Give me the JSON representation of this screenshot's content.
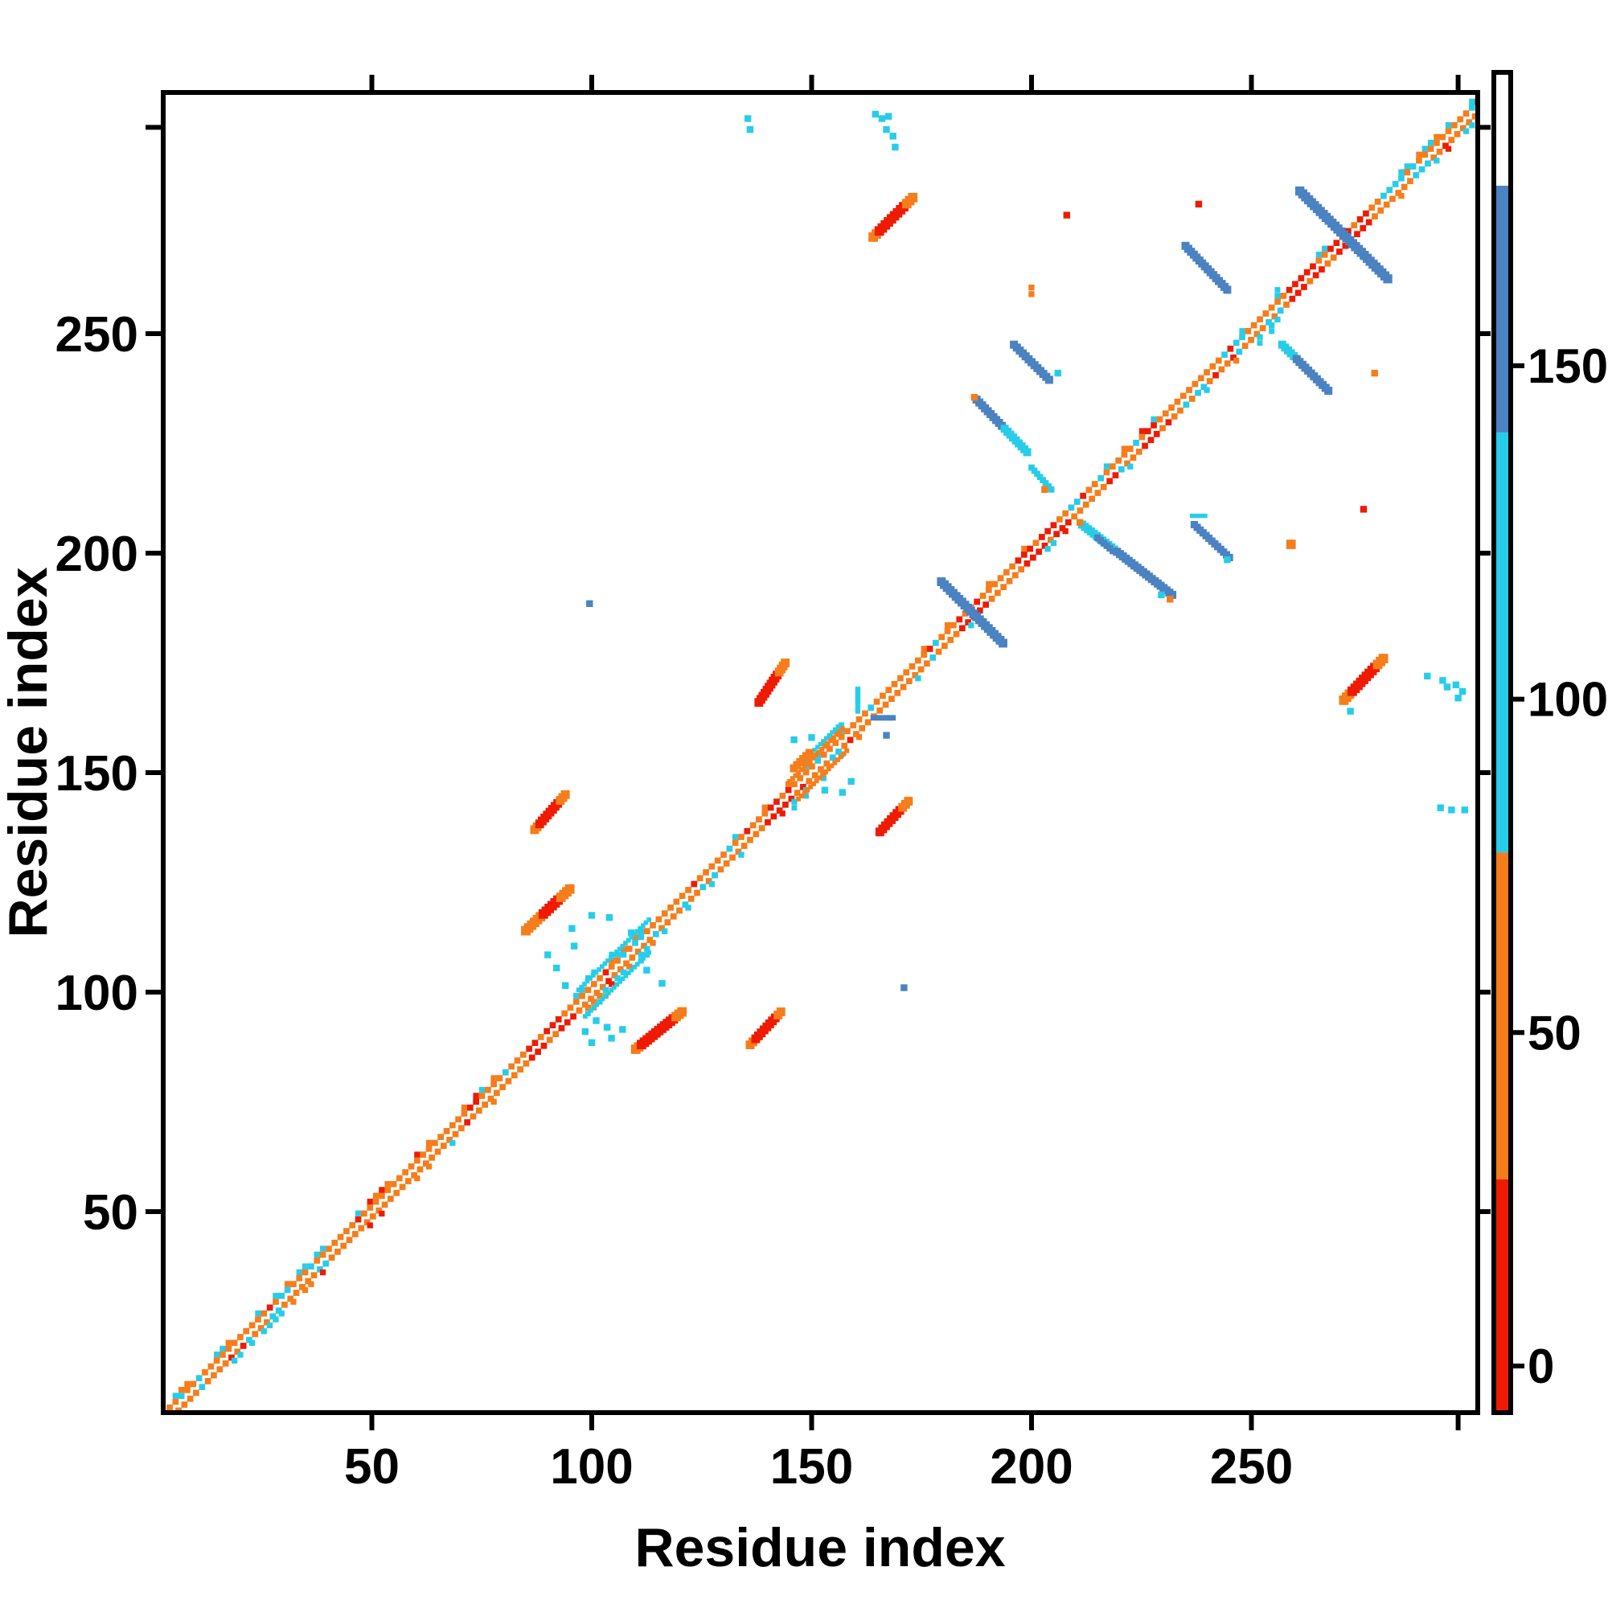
{
  "figure": {
    "kind": "protein residue contact map",
    "background": "#ffffff"
  },
  "chart_data": {
    "type": "heatmap",
    "title": "",
    "xlabel": "Residue index",
    "ylabel": "Residue index",
    "x_ticks": [
      50,
      100,
      150,
      200,
      250
    ],
    "y_ticks": [
      50,
      100,
      150,
      200,
      250
    ],
    "edge_tick": 297,
    "x_range": [
      0,
      305
    ],
    "y_range": [
      0,
      305
    ],
    "grid": false,
    "colors": {
      "red": "#ee1b02",
      "orange": "#f57d1b",
      "cyan": "#27cde8",
      "blue": "#4a82c2",
      "white": "#ffffff",
      "axis": "#000000"
    },
    "colorbar": {
      "ticks": [
        0,
        50,
        100,
        150
      ],
      "value_range": [
        -7,
        194
      ],
      "segments": [
        {
          "from": -7,
          "to": 28,
          "color_key": "red"
        },
        {
          "from": 28,
          "to": 77,
          "color_key": "orange"
        },
        {
          "from": 77,
          "to": 140,
          "color_key": "cyan"
        },
        {
          "from": 140,
          "to": 177,
          "color_key": "blue"
        },
        {
          "from": 177,
          "to": 194,
          "color_key": "white"
        }
      ]
    },
    "diagonal_band": {
      "range": [
        0,
        303
      ],
      "red_stretches": [
        [
          85,
          93
        ],
        [
          138,
          145
        ],
        [
          183,
          191
        ],
        [
          196,
          203
        ],
        [
          204,
          208
        ],
        [
          224,
          228
        ],
        [
          258,
          266
        ],
        [
          267,
          277
        ]
      ],
      "cyan_fleck_zones": [
        [
          20,
          40
        ],
        [
          95,
          115
        ],
        [
          145,
          160
        ],
        [
          168,
          180
        ],
        [
          232,
          258
        ],
        [
          277,
          302
        ]
      ],
      "offset2_zones": [
        [
          20,
          40
        ],
        [
          48,
          53
        ],
        [
          95,
          115
        ],
        [
          145,
          162
        ],
        [
          248,
          258
        ],
        [
          283,
          302
        ]
      ],
      "offset3_zones": [
        [
          97,
          113
        ],
        [
          146,
          160
        ],
        [
          250,
          257
        ]
      ],
      "orange_lens": [
        48,
        53
      ]
    },
    "features": [
      {
        "name": "anti-blue-seg",
        "from": [
          196,
          247.5
        ],
        "to": [
          204,
          239.5
        ],
        "w": 2.2,
        "parts": [
          {
            "t": 1,
            "c": "blue"
          }
        ]
      },
      {
        "name": "anti-blue-cyan-seg",
        "from": [
          187.5,
          235
        ],
        "to": [
          199,
          223
        ],
        "w": 2.2,
        "parts": [
          {
            "t": 0.55,
            "c": "blue"
          },
          {
            "t": 1,
            "c": "cyan"
          }
        ]
      },
      {
        "name": "cyan-steps",
        "from": [
          200,
          219.5
        ],
        "to": [
          204.5,
          214.5
        ],
        "w": 1.7,
        "parts": [
          {
            "t": 1,
            "c": "cyan"
          }
        ]
      },
      {
        "name": "anti-blue-seg2",
        "from": [
          235,
          270
        ],
        "to": [
          244.5,
          260
        ],
        "w": 2.2,
        "parts": [
          {
            "t": 1,
            "c": "blue"
          }
        ]
      },
      {
        "name": "x-arm-187",
        "from": [
          179.5,
          193.5
        ],
        "to": [
          193.5,
          179.5
        ],
        "w": 2.4,
        "parts": [
          {
            "t": 1,
            "c": "blue"
          }
        ]
      },
      {
        "name": "x-arm-271",
        "from": [
          261,
          282.5
        ],
        "to": [
          281,
          262.5
        ],
        "w": 2.5,
        "parts": [
          {
            "t": 1,
            "c": "blue"
          }
        ]
      },
      {
        "name": "anti-cyan-blue-seg",
        "from": [
          257,
          247.5
        ],
        "to": [
          267.5,
          237
        ],
        "w": 2.2,
        "parts": [
          {
            "t": 0.3,
            "c": "cyan"
          },
          {
            "t": 1,
            "c": "blue"
          }
        ]
      },
      {
        "name": "long-anti-seg",
        "from": [
          211.5,
          206.5
        ],
        "to": [
          232,
          190.5
        ],
        "w": 2.2,
        "parts": [
          {
            "t": 0.38,
            "c": "cyan"
          },
          {
            "t": 1,
            "c": "blue"
          }
        ]
      },
      {
        "name": "long-anti-thick",
        "from": [
          215,
          203.5
        ],
        "to": [
          218.5,
          200.5
        ],
        "w": 1.8,
        "parts": [
          {
            "t": 1,
            "c": "blue"
          }
        ]
      },
      {
        "name": "anti-blue-seg3",
        "from": [
          237,
          206.5
        ],
        "to": [
          245,
          199
        ],
        "w": 2.0,
        "parts": [
          {
            "t": 1,
            "c": "blue"
          }
        ]
      },
      {
        "name": "cyan-dash",
        "from": [
          236.5,
          208.5
        ],
        "to": [
          239.5,
          208.5
        ],
        "w": 1.2,
        "parts": [
          {
            "t": 1,
            "c": "cyan"
          }
        ]
      },
      {
        "name": "red-blob-ul-1",
        "from": [
          164,
          272
        ],
        "to": [
          173,
          281
        ],
        "w": 2.6,
        "parts": [
          {
            "t": 0.15,
            "c": "orange"
          },
          {
            "t": 0.8,
            "c": "red"
          },
          {
            "t": 1,
            "c": "orange"
          }
        ]
      },
      {
        "name": "red-blob-ul-2",
        "from": [
          87,
          137
        ],
        "to": [
          94,
          145
        ],
        "w": 2.4,
        "parts": [
          {
            "t": 0.15,
            "c": "orange"
          },
          {
            "t": 0.8,
            "c": "red"
          },
          {
            "t": 1,
            "c": "orange"
          }
        ]
      },
      {
        "name": "orange-blob-ul",
        "from": [
          85,
          114
        ],
        "to": [
          95,
          123.5
        ],
        "w": 2.6,
        "parts": [
          {
            "t": 0.35,
            "c": "orange"
          },
          {
            "t": 0.75,
            "c": "red"
          },
          {
            "t": 1,
            "c": "orange"
          }
        ]
      },
      {
        "name": "red-blob-ul-3",
        "from": [
          138,
          166
        ],
        "to": [
          144,
          175
        ],
        "w": 2.4,
        "parts": [
          {
            "t": 0.7,
            "c": "red"
          },
          {
            "t": 1,
            "c": "orange"
          }
        ]
      },
      {
        "name": "red-blob-lr-1",
        "from": [
          110,
          87
        ],
        "to": [
          120.5,
          95.5
        ],
        "w": 2.6,
        "parts": [
          {
            "t": 0.12,
            "c": "orange"
          },
          {
            "t": 0.85,
            "c": "red"
          },
          {
            "t": 1,
            "c": "orange"
          }
        ]
      },
      {
        "name": "red-blob-lr-2",
        "from": [
          136,
          88
        ],
        "to": [
          143,
          95.5
        ],
        "w": 2.4,
        "parts": [
          {
            "t": 0.15,
            "c": "orange"
          },
          {
            "t": 0.85,
            "c": "red"
          },
          {
            "t": 1,
            "c": "orange"
          }
        ]
      },
      {
        "name": "red-blob-lr-3",
        "from": [
          165.5,
          136.5
        ],
        "to": [
          172,
          143.5
        ],
        "w": 2.4,
        "parts": [
          {
            "t": 0.75,
            "c": "red"
          },
          {
            "t": 1,
            "c": "orange"
          }
        ]
      },
      {
        "name": "red-blob-lr-4",
        "from": [
          271,
          166.5
        ],
        "to": [
          280,
          176
        ],
        "w": 2.6,
        "parts": [
          {
            "t": 0.15,
            "c": "orange"
          },
          {
            "t": 0.82,
            "c": "red"
          },
          {
            "t": 1,
            "c": "orange"
          }
        ]
      },
      {
        "name": "c100-cyan-line-up",
        "from": [
          97,
          100.5
        ],
        "to": [
          113,
          116.5
        ],
        "w": 1.25,
        "parts": [
          {
            "t": 1,
            "c": "cyan"
          }
        ]
      },
      {
        "name": "c100-cyan-line-dn",
        "from": [
          98.5,
          94.5
        ],
        "to": [
          113,
          109
        ],
        "w": 1.25,
        "parts": [
          {
            "t": 1,
            "c": "cyan"
          }
        ]
      },
      {
        "name": "c150-orange-line-up",
        "from": [
          145,
          148
        ],
        "to": [
          157,
          160
        ],
        "w": 1.3,
        "parts": [
          {
            "t": 1,
            "c": "orange"
          }
        ]
      },
      {
        "name": "c150-orange-line-dn",
        "from": [
          147,
          144
        ],
        "to": [
          158,
          155
        ],
        "w": 1.3,
        "parts": [
          {
            "t": 1,
            "c": "orange"
          }
        ]
      },
      {
        "name": "c150-cyan-line",
        "from": [
          148,
          152.5
        ],
        "to": [
          156,
          160.5
        ],
        "w": 1.2,
        "parts": [
          {
            "t": 1,
            "c": "cyan"
          }
        ]
      },
      {
        "name": "c150-blue-dash",
        "from": [
          164,
          162.5
        ],
        "to": [
          168.5,
          162.5
        ],
        "w": 1.5,
        "parts": [
          {
            "t": 1,
            "c": "blue"
          }
        ]
      },
      {
        "name": "c150-cyan-vert",
        "from": [
          160.5,
          164
        ],
        "to": [
          160.5,
          169
        ],
        "w": 1.4,
        "parts": [
          {
            "t": 1,
            "c": "cyan"
          }
        ]
      },
      {
        "name": "c150-orange-knot",
        "from": [
          146,
          151
        ],
        "to": [
          149.5,
          154.5
        ],
        "w": 2.2,
        "parts": [
          {
            "t": 1,
            "c": "orange"
          }
        ]
      }
    ],
    "dots": [
      {
        "x": 135.5,
        "y": 299,
        "c": "cyan"
      },
      {
        "x": 136,
        "y": 296.5,
        "c": "cyan"
      },
      {
        "x": 164.5,
        "y": 300,
        "c": "cyan"
      },
      {
        "x": 166,
        "y": 299,
        "c": "cyan"
      },
      {
        "x": 167.5,
        "y": 299.5,
        "c": "cyan"
      },
      {
        "x": 167,
        "y": 296.5,
        "c": "cyan"
      },
      {
        "x": 168.5,
        "y": 295,
        "c": "cyan"
      },
      {
        "x": 169,
        "y": 292.5,
        "c": "cyan"
      },
      {
        "x": 208,
        "y": 277,
        "c": "red"
      },
      {
        "x": 238,
        "y": 279.5,
        "c": "red"
      },
      {
        "x": 200,
        "y": 259,
        "c": "orange",
        "w": 1.0
      },
      {
        "x": 200,
        "y": 260.5,
        "c": "orange",
        "w": 1.0
      },
      {
        "x": 99.5,
        "y": 188.5,
        "c": "blue"
      },
      {
        "x": 171,
        "y": 101,
        "c": "blue"
      },
      {
        "x": 278,
        "y": 241,
        "c": "orange"
      },
      {
        "x": 275.5,
        "y": 210,
        "c": "red"
      },
      {
        "x": 259,
        "y": 202,
        "c": "orange",
        "w": 1.6
      },
      {
        "x": 272.5,
        "y": 164,
        "c": "cyan"
      },
      {
        "x": 290,
        "y": 172,
        "c": "cyan"
      },
      {
        "x": 293.5,
        "y": 171,
        "c": "cyan"
      },
      {
        "x": 294.5,
        "y": 169.5,
        "c": "cyan"
      },
      {
        "x": 296.5,
        "y": 170,
        "c": "cyan"
      },
      {
        "x": 298,
        "y": 168.5,
        "c": "cyan"
      },
      {
        "x": 297,
        "y": 167,
        "c": "cyan"
      },
      {
        "x": 293,
        "y": 142,
        "c": "cyan"
      },
      {
        "x": 295.5,
        "y": 141.5,
        "c": "cyan"
      },
      {
        "x": 298.5,
        "y": 141.5,
        "c": "cyan"
      },
      {
        "x": 90,
        "y": 108.5,
        "c": "cyan"
      },
      {
        "x": 92,
        "y": 105.5,
        "c": "cyan"
      },
      {
        "x": 100,
        "y": 117.5,
        "c": "cyan"
      },
      {
        "x": 104,
        "y": 117,
        "c": "cyan"
      },
      {
        "x": 112.5,
        "y": 105,
        "c": "cyan"
      },
      {
        "x": 116,
        "y": 102,
        "c": "cyan"
      },
      {
        "x": 96,
        "y": 110.5,
        "c": "cyan"
      },
      {
        "x": 109,
        "y": 113.5,
        "c": "cyan"
      },
      {
        "x": 94,
        "y": 101.5,
        "c": "cyan"
      },
      {
        "x": 98.5,
        "y": 91,
        "c": "cyan"
      },
      {
        "x": 101,
        "y": 93.5,
        "c": "cyan"
      },
      {
        "x": 103.5,
        "y": 92,
        "c": "cyan"
      },
      {
        "x": 107,
        "y": 91.5,
        "c": "cyan"
      },
      {
        "x": 100,
        "y": 88.5,
        "c": "cyan"
      },
      {
        "x": 104.5,
        "y": 89.5,
        "c": "cyan"
      },
      {
        "x": 146,
        "y": 157.5,
        "c": "cyan"
      },
      {
        "x": 153,
        "y": 146,
        "c": "cyan"
      },
      {
        "x": 157,
        "y": 145.5,
        "c": "cyan"
      },
      {
        "x": 150,
        "y": 158,
        "c": "cyan"
      },
      {
        "x": 159,
        "y": 148,
        "c": "cyan"
      },
      {
        "x": 167,
        "y": 158.5,
        "c": "blue"
      },
      {
        "x": 206,
        "y": 241,
        "c": "cyan"
      },
      {
        "x": 203,
        "y": 214.5,
        "c": "orange"
      },
      {
        "x": 187,
        "y": 235.5,
        "c": "orange"
      },
      {
        "x": 211,
        "y": 207,
        "c": "orange"
      },
      {
        "x": 231.5,
        "y": 189.5,
        "c": "orange"
      },
      {
        "x": 244.5,
        "y": 198.5,
        "c": "cyan"
      },
      {
        "x": 95.5,
        "y": 114.5,
        "c": "cyan"
      },
      {
        "x": 229.5,
        "y": 190.5,
        "c": "cyan"
      }
    ]
  }
}
